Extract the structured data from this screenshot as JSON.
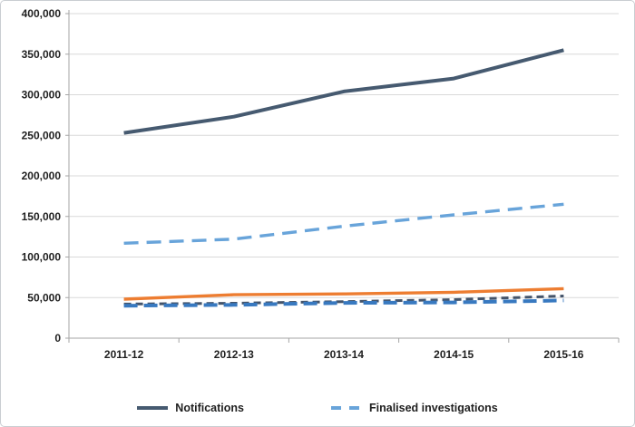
{
  "chart_data": {
    "type": "line",
    "title": "",
    "xlabel": "",
    "ylabel": "",
    "categories": [
      "2011-12",
      "2012-13",
      "2013-14",
      "2014-15",
      "2015-16"
    ],
    "series": [
      {
        "name": "Notifications",
        "values": [
          253000,
          273000,
          304000,
          320000,
          355000
        ],
        "color": "#465a70",
        "style": "solid",
        "dash": "",
        "width": 4,
        "in_legend": true
      },
      {
        "name": "Finalised investigations",
        "values": [
          117000,
          122000,
          138000,
          152000,
          165000
        ],
        "color": "#68a4da",
        "style": "dashed",
        "dash": "16 9",
        "width": 3.4,
        "in_legend": true
      },
      {
        "name": "unlabelled orange solid line",
        "values": [
          48000,
          53500,
          54500,
          56500,
          61000
        ],
        "color": "#ed7d31",
        "style": "solid",
        "dash": "",
        "width": 3.4,
        "in_legend": false
      },
      {
        "name": "unlabelled dark short-dash line",
        "values": [
          42000,
          43000,
          45000,
          47500,
          52000
        ],
        "color": "#44546a",
        "style": "dashed",
        "dash": "8 5",
        "width": 3,
        "in_legend": false
      },
      {
        "name": "unlabelled blue long-dash line",
        "values": [
          40000,
          41000,
          43500,
          44000,
          46500
        ],
        "color": "#3879c0",
        "style": "dashed",
        "dash": "15 7",
        "width": 4,
        "in_legend": false
      }
    ],
    "ylim": [
      0,
      400000
    ],
    "ytick_step": 50000,
    "ytick_labels": [
      "0",
      "50,000",
      "100,000",
      "150,000",
      "200,000",
      "250,000",
      "300,000",
      "350,000",
      "400,000"
    ],
    "grid": true,
    "legend_position": "bottom"
  },
  "colors": {
    "background": "#ffffff",
    "frame_border": "#c9cdd2",
    "gridline": "#d9d9d9",
    "axis": "#a6a6a6",
    "tick_text": "#1f1f1f"
  }
}
